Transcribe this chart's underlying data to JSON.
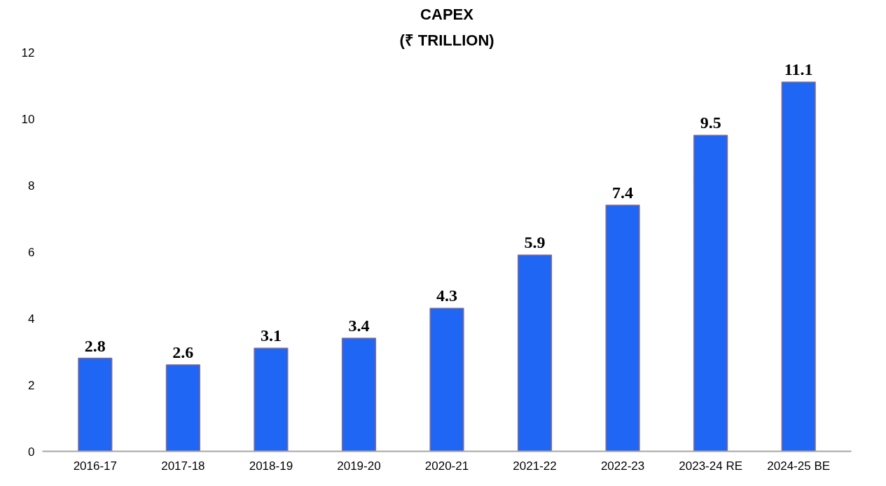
{
  "chart_data": {
    "type": "bar",
    "title": "CAPEX",
    "subtitle": "(₹ TRILLION)",
    "categories": [
      "2016-17",
      "2017-18",
      "2018-19",
      "2019-20",
      "2020-21",
      "2021-22",
      "2022-23",
      "2023-24 RE",
      "2024-25 BE"
    ],
    "values": [
      2.8,
      2.6,
      3.1,
      3.4,
      4.3,
      5.9,
      7.4,
      9.5,
      11.1
    ],
    "color": "#1f66f5",
    "ylim": [
      0,
      12
    ],
    "yticks": [
      0,
      2,
      4,
      6,
      8,
      10,
      12
    ],
    "grid": false,
    "data_labels": true
  }
}
